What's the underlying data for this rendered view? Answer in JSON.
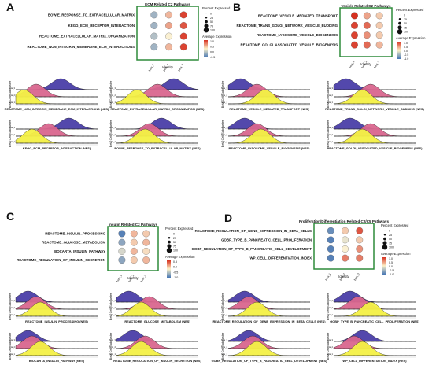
{
  "panels": [
    {
      "letter": "A",
      "title": "ECM Related C2 Pathways",
      "pathways": [
        "BOWIE_RESPONSE_TO_EXTRACELLULAR_MATRIX",
        "KEGG_ECM_RECEPTOR_INTERACTION",
        "REACTOME_EXTRACELLULAR_MATRIX_ORGANIZATION",
        "REACTOME_NON_INTEGRIN_MEMBRANE_ECM_INTERACTIONS"
      ]
    },
    {
      "letter": "B",
      "title": "Vesicle Related C2 Pathways",
      "pathways": [
        "REACTOME_VESICLE_MEDIATED_TRANSPORT",
        "REACTOME_TRANS_GOLGI_NETWORK_VESICLE_BUDDING",
        "REACTOME_LYSOSOME_VESICLE_BIOGENESIS",
        "REACTOME_GOLGI_ASSOCIATED_VESICLE_BIOGENESIS"
      ]
    },
    {
      "letter": "C",
      "title": "Insulin Related C2 Pathways",
      "pathways": [
        "REACTOME_INSULIN_PROCESSING",
        "REACTOME_GLUCOSE_METABOLISM",
        "BIOCARTA_INSULIN_PATHWAY",
        "REACTOME_REGULATION_OF_INSULIN_SECRETION"
      ]
    },
    {
      "letter": "D",
      "title": "Proliferation/Differentiation Related C2/C5 Pathways",
      "pathways": [
        "REACTOME_REGULATION_OF_GENE_EXPRESSION_IN_BETA_CELLS",
        "GOBP_TYPE_B_PANCREATIC_CELL_PROLIFERATION",
        "GOBP_REGULATION_OF_TYPE_B_PANCREATIC_CELL_DEVELOPMENT",
        "WP_CELL_DIFFERENTIATION_INDEX"
      ]
    }
  ],
  "dot_labels": {
    "identity": "Identity",
    "groups": [
      "beta_1",
      "beta_2",
      "beta_3"
    ],
    "pct_title": "Percent Expressed",
    "pct_values": [
      "0",
      "25",
      "50",
      "75",
      "100"
    ],
    "avg_title": "Average Expression",
    "avg_ticks": [
      [
        "1.0",
        "0.5",
        "0.0",
        "-0.5"
      ],
      [
        "1.0",
        "0.5",
        "0.0",
        "-0.5",
        "-1.0"
      ],
      [
        "0.5",
        "0.0",
        "-0.5",
        "-1.0"
      ],
      [
        "1.0",
        "0.5",
        "0.0",
        "-0.5",
        "-1.0"
      ]
    ]
  },
  "ridge_labels": {
    "ylabel": "Beta Cell Subcluster",
    "groups": [
      "beta_3",
      "beta_2",
      "beta_1"
    ],
    "plots": [
      "REACTOME_NON_INTEGRIN_MEMBRANE_ECM_INTERACTIONS (NES)",
      "REACTOME_EXTRACELLULAR_MATRIX_ORGANIZATION (NES)",
      "REACTOME_VESICLE_MEDIATED_TRANSPORT (NES)",
      "REACTOME_TRANS_GOLGI_NETWORK_VESICLE_BUDDING (NES)",
      "KEGG_ECM_RECEPTOR_INTERACTION (NES)",
      "BOWIE_RESPONSE_TO_EXTRACELLULAR_MATRIX (NES)",
      "REACTOME_LYSOSOME_VESICLE_BIOGENESIS (NES)",
      "REACTOME_GOLGI_ASSOCIATED_VESICLE_BIOGENESIS (NES)",
      "REACTOME_INSULIN_PROCESSING (NES)",
      "REACTOME_GLUCOSE_METABOLISM (NES)",
      "REACTOME_REGULATION_OF_GENE_EXPRESSION_IN_BETA_CELLS (NES)",
      "GOBP_TYPE_B_PANCREATIC_CELL_PROLIFERATION (NES)",
      "BIOCARTA_INSULIN_PATHWAY (NES)",
      "REACTOME_REGULATION_OF_INSULIN_SECRETION (NES)",
      "GOBP_REGULATION_OF_TYPE_B_PANCREATIC_CELL_DEVELOPMENT (NES)",
      "WP_CELL_DIFFERENTIATION_INDEX (NES)"
    ]
  },
  "colors": {
    "beta_1": "#f3f044",
    "beta_2": "#d9668e",
    "beta_3": "#4a3ea8",
    "frame": "#2e8b3a",
    "high": "#d7301f",
    "low": "#4575b4"
  },
  "chart_data": {
    "type": "dotplot+ridgeline",
    "dotplots": [
      {
        "panel": "A",
        "rows": [
          [
            "beta_1",
            0.35,
            95
          ],
          [
            "beta_2",
            0.1,
            95
          ],
          [
            "beta_3",
            -0.2,
            95
          ]
        ]
      },
      {
        "panel": "B",
        "rows": [
          [
            "beta_1",
            0.6,
            100
          ],
          [
            "beta_2",
            0.2,
            100
          ],
          [
            "beta_3",
            -0.3,
            100
          ]
        ]
      },
      {
        "panel": "C",
        "rows": [
          [
            "beta_1",
            0.5,
            100
          ],
          [
            "beta_2",
            0.2,
            100
          ],
          [
            "beta_3",
            -0.8,
            100
          ]
        ]
      },
      {
        "panel": "D",
        "rows": [
          [
            "beta_1",
            0.6,
            100
          ],
          [
            "beta_2",
            0.1,
            100
          ],
          [
            "beta_3",
            -0.9,
            100
          ]
        ]
      }
    ],
    "dot_values": [
      [
        [
          -0.5,
          0.3,
          0.9
        ],
        [
          -0.5,
          0.4,
          0.8
        ],
        [
          -0.4,
          0.0,
          0.9
        ],
        [
          -0.5,
          0.3,
          0.9
        ]
      ],
      [
        [
          1.0,
          0.4,
          0.2
        ],
        [
          0.9,
          0.7,
          0.2
        ],
        [
          0.9,
          0.5,
          0.2
        ],
        [
          0.9,
          0.7,
          0.3
        ]
      ],
      [
        [
          -0.9,
          0.3,
          0.2
        ],
        [
          -0.6,
          0.2,
          0.3
        ],
        [
          -0.2,
          0.3,
          0.1
        ],
        [
          -0.6,
          0.2,
          0.3
        ]
      ],
      [
        [
          -0.8,
          0.2,
          0.8
        ],
        [
          -0.9,
          -0.1,
          0.2
        ],
        [
          -0.9,
          0.0,
          0.5
        ],
        [
          -0.9,
          0.6,
          0.6
        ]
      ]
    ],
    "ridge_peaks": [
      [
        0.1,
        0.25,
        0.55
      ],
      [
        0.25,
        0.5,
        0.7
      ],
      [
        0.45,
        0.35,
        0.15
      ],
      [
        0.35,
        0.45,
        0.15
      ],
      [
        0.2,
        0.4,
        0.65
      ],
      [
        0.35,
        0.4,
        0.55
      ],
      [
        0.4,
        0.35,
        0.2
      ],
      [
        0.35,
        0.45,
        0.2
      ],
      [
        0.3,
        0.25,
        0.15
      ],
      [
        0.3,
        0.4,
        0.15
      ],
      [
        0.35,
        0.25,
        0.2
      ],
      [
        0.45,
        0.3,
        0.2
      ],
      [
        0.3,
        0.2,
        0.15
      ],
      [
        0.3,
        0.35,
        0.2
      ],
      [
        0.35,
        0.3,
        0.25
      ],
      [
        0.35,
        0.25,
        0.35
      ]
    ]
  }
}
